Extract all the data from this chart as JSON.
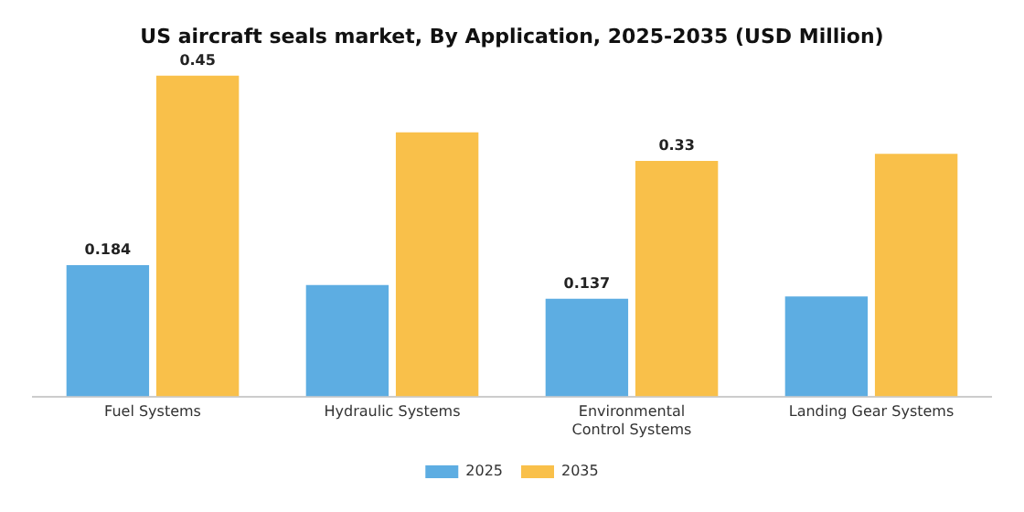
{
  "chart_data": {
    "type": "bar",
    "title": "US aircraft seals market, By Application, 2025-2035 (USD Million)",
    "categories": [
      "Fuel Systems",
      "Hydraulic Systems",
      "Environmental Control Systems",
      "Landing Gear Systems"
    ],
    "series": [
      {
        "name": "2025",
        "color": "#5dade2",
        "values": [
          0.184,
          0.156,
          0.137,
          0.14
        ],
        "value_labels": [
          "0.184",
          null,
          "0.137",
          null
        ]
      },
      {
        "name": "2035",
        "color": "#f9c04a",
        "values": [
          0.45,
          0.37,
          0.33,
          0.34
        ],
        "value_labels": [
          "0.45",
          null,
          "0.33",
          null
        ]
      }
    ],
    "legend": "bottom",
    "grid": false,
    "tick_labels": "x"
  }
}
